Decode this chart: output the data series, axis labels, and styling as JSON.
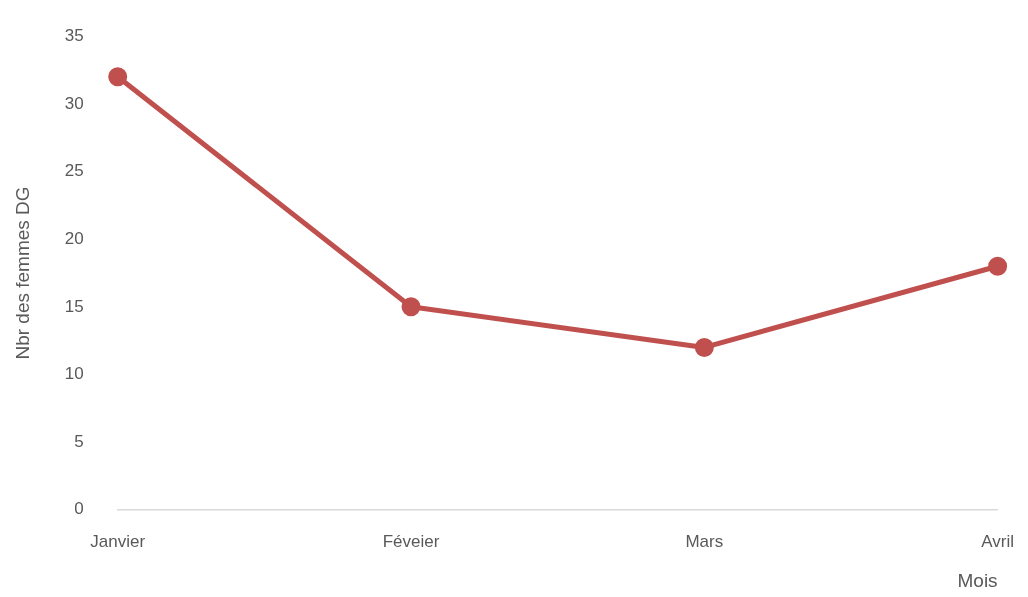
{
  "chart_data": {
    "type": "line",
    "xlabel": "Mois",
    "ylabel": "Nbr des femmes DG",
    "categories": [
      "Janvier",
      "Féveier",
      "Mars",
      "Avril"
    ],
    "series": [
      {
        "color": "#c0504d",
        "values": [
          32,
          15,
          12,
          18
        ]
      }
    ],
    "ylim": [
      0,
      35
    ],
    "yticks": [
      0,
      5,
      10,
      15,
      20,
      25,
      30,
      35
    ],
    "grid": false,
    "legend": false,
    "marker": "circle",
    "line_style": "solid"
  }
}
